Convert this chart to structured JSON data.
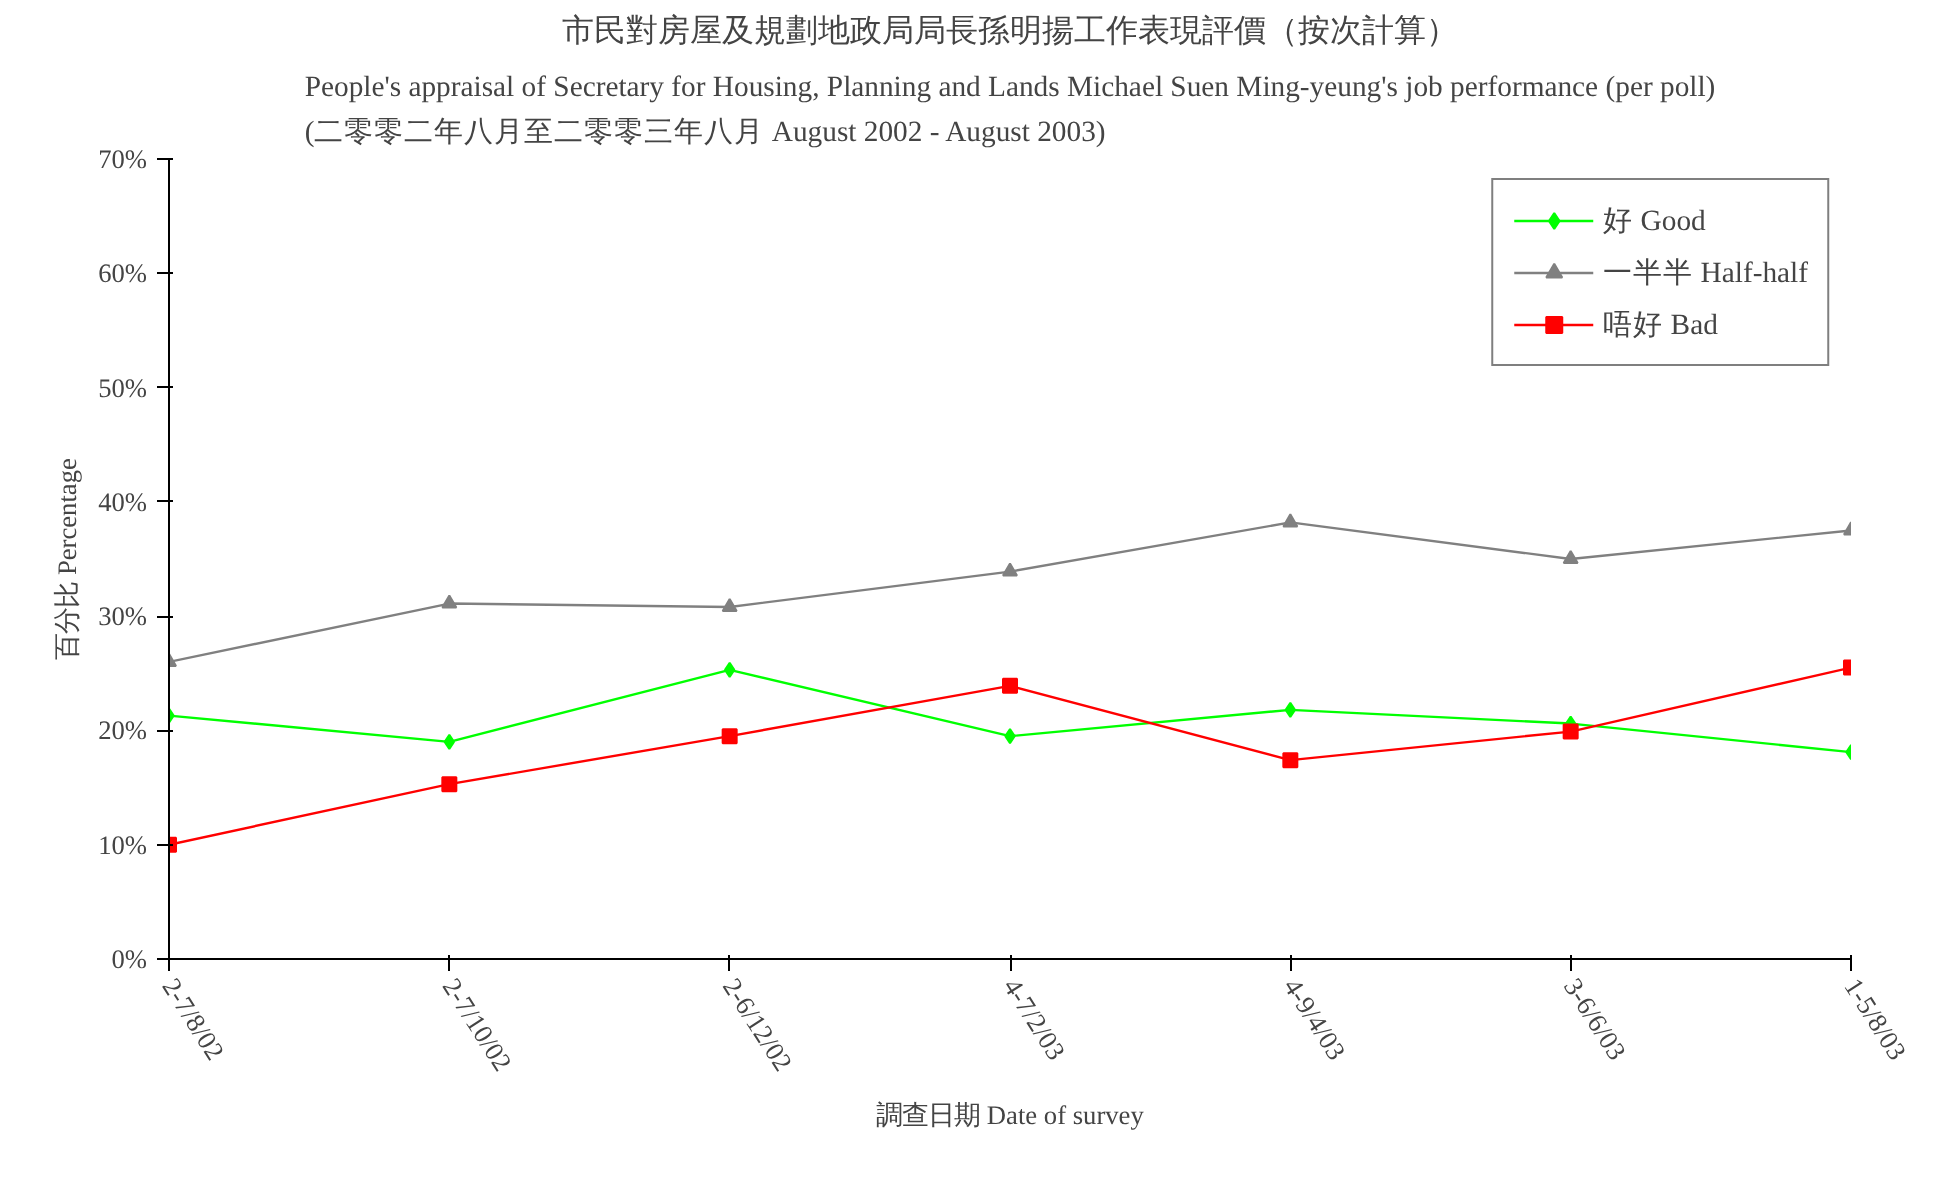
{
  "chart_data": {
    "type": "line",
    "title": "市民對房屋及規劃地政局局長孫明揚工作表現評價（按次計算）",
    "subtitle": "People's appraisal of Secretary for Housing, Planning and Lands Michael Suen Ming-yeung's job performance (per poll)\n(二零零二年八月至二零零三年八月 August 2002 - August 2003)",
    "xlabel": "調查日期 Date of survey",
    "ylabel": "百分比 Percentage",
    "categories": [
      "2-7/8/02",
      "2-7/10/02",
      "2-6/12/02",
      "4-7/2/03",
      "4-9/4/03",
      "3-6/6/03",
      "1-5/8/03"
    ],
    "series": [
      {
        "name": "好 Good",
        "color": "#00ff00",
        "marker": "diamond",
        "values": [
          21.3,
          19.0,
          25.3,
          19.5,
          21.8,
          20.6,
          18.1
        ]
      },
      {
        "name": "一半半 Half-half",
        "color": "#808080",
        "marker": "triangle",
        "values": [
          26.0,
          31.1,
          30.8,
          33.9,
          38.2,
          35.0,
          37.5
        ]
      },
      {
        "name": "唔好 Bad",
        "color": "#ff0000",
        "marker": "square",
        "values": [
          10.0,
          15.3,
          19.5,
          23.9,
          17.4,
          19.9,
          25.5
        ]
      }
    ],
    "ylim": [
      0,
      70
    ],
    "yticks": [
      {
        "value": 0,
        "label": "0%"
      },
      {
        "value": 10,
        "label": "10%"
      },
      {
        "value": 20,
        "label": "20%"
      },
      {
        "value": 30,
        "label": "30%"
      },
      {
        "value": 40,
        "label": "40%"
      },
      {
        "value": 50,
        "label": "50%"
      },
      {
        "value": 60,
        "label": "60%"
      },
      {
        "value": 70,
        "label": "70%"
      }
    ],
    "grid": false,
    "legend": "top right",
    "line_style": "solid"
  }
}
